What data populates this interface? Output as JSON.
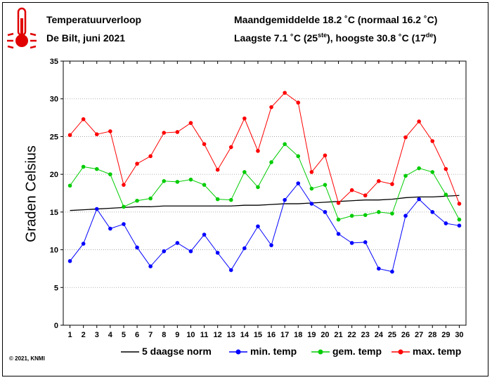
{
  "header": {
    "title_line1": "Temperatuurverloop",
    "title_line2": "De Bilt, juni 2021",
    "month_avg_text": "Maandgemiddelde 18.2 ˚C (normaal 16.2 ˚C)",
    "extremes_prefix": "Laagste 7.1 ˚C (25",
    "extremes_sup1": "ste",
    "extremes_middle": "), hoogste 30.8 ˚C (17",
    "extremes_sup2": "de",
    "extremes_suffix": ")"
  },
  "icon": "thermometer-icon",
  "copyright": "© 2021, KNMI",
  "colors": {
    "norm": "#000000",
    "min": "#0000ff",
    "avg": "#00cc00",
    "max": "#ff0000",
    "grid": "#999999"
  },
  "chart_data": {
    "type": "line",
    "title": "Temperatuurverloop De Bilt, juni 2021",
    "xlabel": "",
    "ylabel": "Graden Celsius",
    "ylim": [
      0,
      35
    ],
    "yticks": [
      0,
      5,
      10,
      15,
      20,
      25,
      30,
      35
    ],
    "x": [
      1,
      2,
      3,
      4,
      5,
      6,
      7,
      8,
      9,
      10,
      11,
      12,
      13,
      14,
      15,
      16,
      17,
      18,
      19,
      20,
      21,
      22,
      23,
      24,
      25,
      26,
      27,
      28,
      29,
      30
    ],
    "grid": true,
    "legend_position": "bottom",
    "series": [
      {
        "name": "5 daagse norm",
        "key": "norm",
        "marker": false,
        "values": [
          15.2,
          15.3,
          15.4,
          15.5,
          15.6,
          15.7,
          15.7,
          15.8,
          15.8,
          15.8,
          15.8,
          15.8,
          15.8,
          15.9,
          15.9,
          16.0,
          16.1,
          16.1,
          16.2,
          16.3,
          16.4,
          16.5,
          16.6,
          16.6,
          16.7,
          16.9,
          17.0,
          17.0,
          17.1,
          17.2
        ]
      },
      {
        "name": "min. temp",
        "key": "min",
        "marker": true,
        "values": [
          8.5,
          10.8,
          15.4,
          12.8,
          13.4,
          10.3,
          7.8,
          9.8,
          10.9,
          9.8,
          12.0,
          9.6,
          7.3,
          10.2,
          13.1,
          10.6,
          16.6,
          18.8,
          16.1,
          15.0,
          12.1,
          10.9,
          11.0,
          7.5,
          7.1,
          14.5,
          16.7,
          15.0,
          13.5,
          13.2
        ]
      },
      {
        "name": "gem. temp",
        "key": "avg",
        "marker": true,
        "values": [
          18.5,
          21.0,
          20.7,
          20.0,
          15.7,
          16.5,
          16.8,
          19.1,
          19.0,
          19.3,
          18.6,
          16.7,
          16.6,
          20.3,
          18.3,
          21.6,
          24.0,
          22.4,
          18.1,
          18.6,
          14.0,
          14.5,
          14.6,
          15.0,
          14.8,
          19.8,
          20.8,
          20.3,
          17.3,
          14.0
        ]
      },
      {
        "name": "max. temp",
        "key": "max",
        "marker": true,
        "values": [
          25.2,
          27.3,
          25.3,
          25.7,
          18.6,
          21.4,
          22.4,
          25.5,
          25.6,
          26.8,
          24.0,
          20.6,
          23.6,
          27.4,
          23.1,
          28.9,
          30.8,
          29.5,
          20.3,
          22.5,
          16.2,
          17.9,
          17.2,
          19.1,
          18.7,
          24.9,
          27.0,
          24.4,
          20.7,
          16.1
        ]
      }
    ]
  }
}
